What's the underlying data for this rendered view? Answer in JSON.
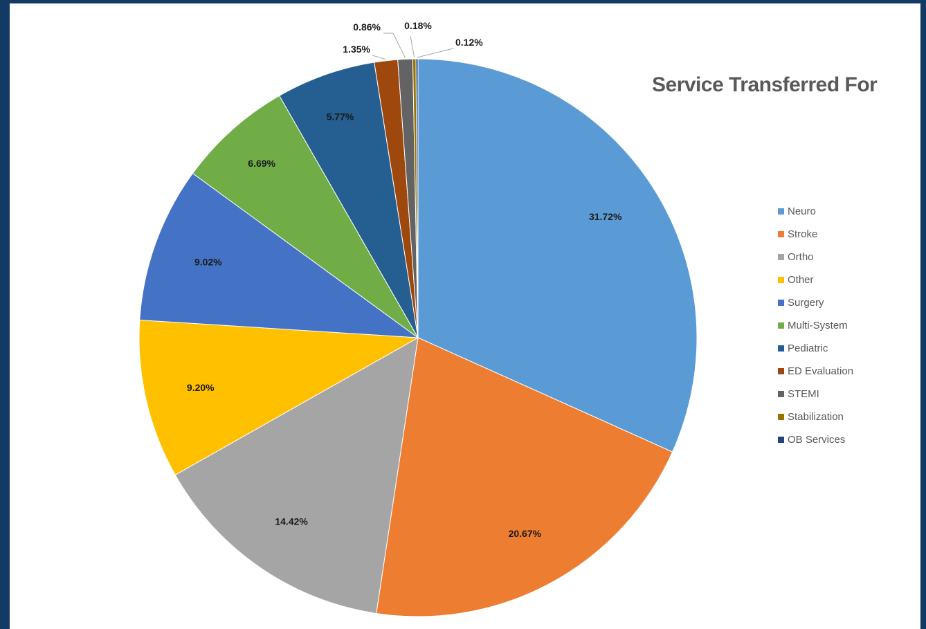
{
  "chart_data": {
    "type": "pie",
    "title": "Service Transferred For",
    "legend_position": "right",
    "categories": [
      "Neuro",
      "Stroke",
      "Ortho",
      "Other",
      "Surgery",
      "Multi-System",
      "Pediatric",
      "ED Evaluation",
      "STEMI",
      "Stabilization",
      "OB Services"
    ],
    "values": [
      31.72,
      20.67,
      14.42,
      9.2,
      9.02,
      6.69,
      5.77,
      1.35,
      0.86,
      0.18,
      0.12
    ],
    "labels": [
      "31.72%",
      "20.67%",
      "14.42%",
      "9.20%",
      "9.02%",
      "6.69%",
      "5.77%",
      "1.35%",
      "0.86%",
      "0.18%",
      "0.12%"
    ],
    "colors": [
      "#5b9bd5",
      "#ed7d31",
      "#a5a5a5",
      "#ffc000",
      "#4472c4",
      "#70ad47",
      "#255e91",
      "#9e480e",
      "#636363",
      "#997300",
      "#264478"
    ]
  }
}
